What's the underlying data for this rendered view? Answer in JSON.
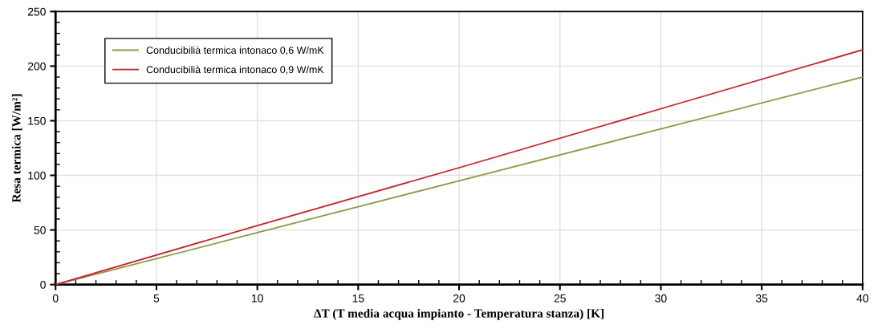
{
  "chart_data": {
    "type": "line",
    "xlabel": "ΔT (T media acqua impianto - Temperatura stanza) [K]",
    "ylabel": "Resa termica [W/m²]",
    "xlim": [
      0,
      40
    ],
    "xticks": [
      0,
      5,
      10,
      15,
      20,
      25,
      30,
      35,
      40
    ],
    "ylim": [
      0,
      250
    ],
    "yticks": [
      0,
      50,
      100,
      150,
      200,
      250
    ],
    "grid": true,
    "legend": "top left",
    "marker": "none",
    "line_style": "solid",
    "series": [
      {
        "name": "Conducibilià termica intonaco 0,6 W/mK",
        "color": "#8c9a48",
        "x": [
          0,
          10,
          20,
          30,
          40
        ],
        "values": [
          0,
          47.5,
          95,
          142.5,
          190
        ]
      },
      {
        "name": "Conducibilià termica intonaco 0,9 W/mK",
        "color": "#c8202a",
        "x": [
          0,
          10,
          20,
          30,
          40
        ],
        "values": [
          0,
          54,
          107,
          161,
          215
        ]
      }
    ]
  }
}
